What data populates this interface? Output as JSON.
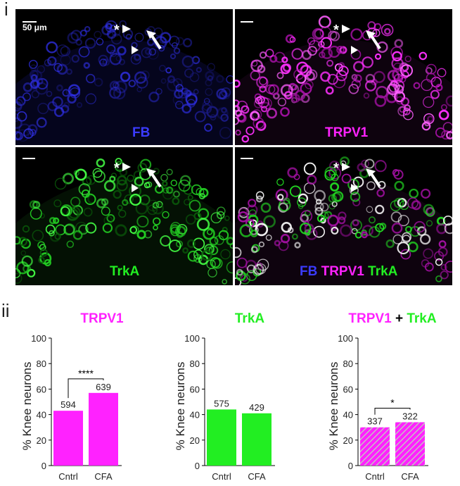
{
  "panel_labels": [
    "i",
    "ii"
  ],
  "colors": {
    "FB": "#3b3bff",
    "TRPV1": "#ff22ff",
    "TrkA": "#22ee22",
    "white": "#ffffff",
    "black": "#000000"
  },
  "micrographs": [
    {
      "id": "fb",
      "tint": "#2a2ad8",
      "labels": [
        {
          "text": "FB",
          "color": "#3b3bff"
        }
      ],
      "scale_text": "50 μm",
      "markers": {
        "star": "*"
      }
    },
    {
      "id": "trpv1",
      "tint": "#e020e0",
      "labels": [
        {
          "text": "TRPV1",
          "color": "#ff22ff"
        }
      ],
      "scale_text": "",
      "markers": {
        "star": "*"
      }
    },
    {
      "id": "trka",
      "tint": "#22dd22",
      "labels": [
        {
          "text": "TrkA",
          "color": "#22ee22"
        }
      ],
      "scale_text": "",
      "markers": {
        "star": "*"
      }
    },
    {
      "id": "merge",
      "tint": "#cc22cc",
      "labels": [
        {
          "text": "FB",
          "color": "#3b3bff"
        },
        {
          "text": "TRPV1",
          "color": "#ff22ff"
        },
        {
          "text": "TrkA",
          "color": "#22ee22"
        }
      ],
      "scale_text": "",
      "markers": {
        "star": "*"
      }
    }
  ],
  "chart_data": [
    {
      "type": "bar",
      "title_parts": [
        {
          "text": "TRPV1",
          "color": "#ff22ff"
        }
      ],
      "categories": [
        "Cntrl",
        "CFA"
      ],
      "values": [
        43,
        57
      ],
      "bar_labels": [
        "594",
        "639"
      ],
      "ylabel": "% Knee neurons",
      "ylim": [
        0,
        100
      ],
      "yticks": [
        "0",
        "20",
        "40",
        "60",
        "80",
        "100"
      ],
      "bar_color": "#ff22ff",
      "hatched": false,
      "significance": "****"
    },
    {
      "type": "bar",
      "title_parts": [
        {
          "text": "TrkA",
          "color": "#22ee22"
        }
      ],
      "categories": [
        "Cntrl",
        "CFA"
      ],
      "values": [
        44,
        41
      ],
      "bar_labels": [
        "575",
        "429"
      ],
      "ylabel": "% Knee neurons",
      "ylim": [
        0,
        100
      ],
      "yticks": [
        "0",
        "20",
        "40",
        "60",
        "80",
        "100"
      ],
      "bar_color": "#22ee22",
      "hatched": false,
      "significance": ""
    },
    {
      "type": "bar",
      "title_parts": [
        {
          "text": "TRPV1",
          "color": "#ff22ff"
        },
        {
          "text": " + ",
          "color": "#000000"
        },
        {
          "text": "TrkA",
          "color": "#22ee22"
        }
      ],
      "categories": [
        "Cntrl",
        "CFA"
      ],
      "values": [
        30,
        34
      ],
      "bar_labels": [
        "337",
        "322"
      ],
      "ylabel": "% Knee neurons",
      "ylim": [
        0,
        100
      ],
      "yticks": [
        "0",
        "20",
        "40",
        "60",
        "80",
        "100"
      ],
      "bar_color": "#ff22ff",
      "hatch_color": "#b8e0b8",
      "hatched": true,
      "significance": "*"
    }
  ]
}
